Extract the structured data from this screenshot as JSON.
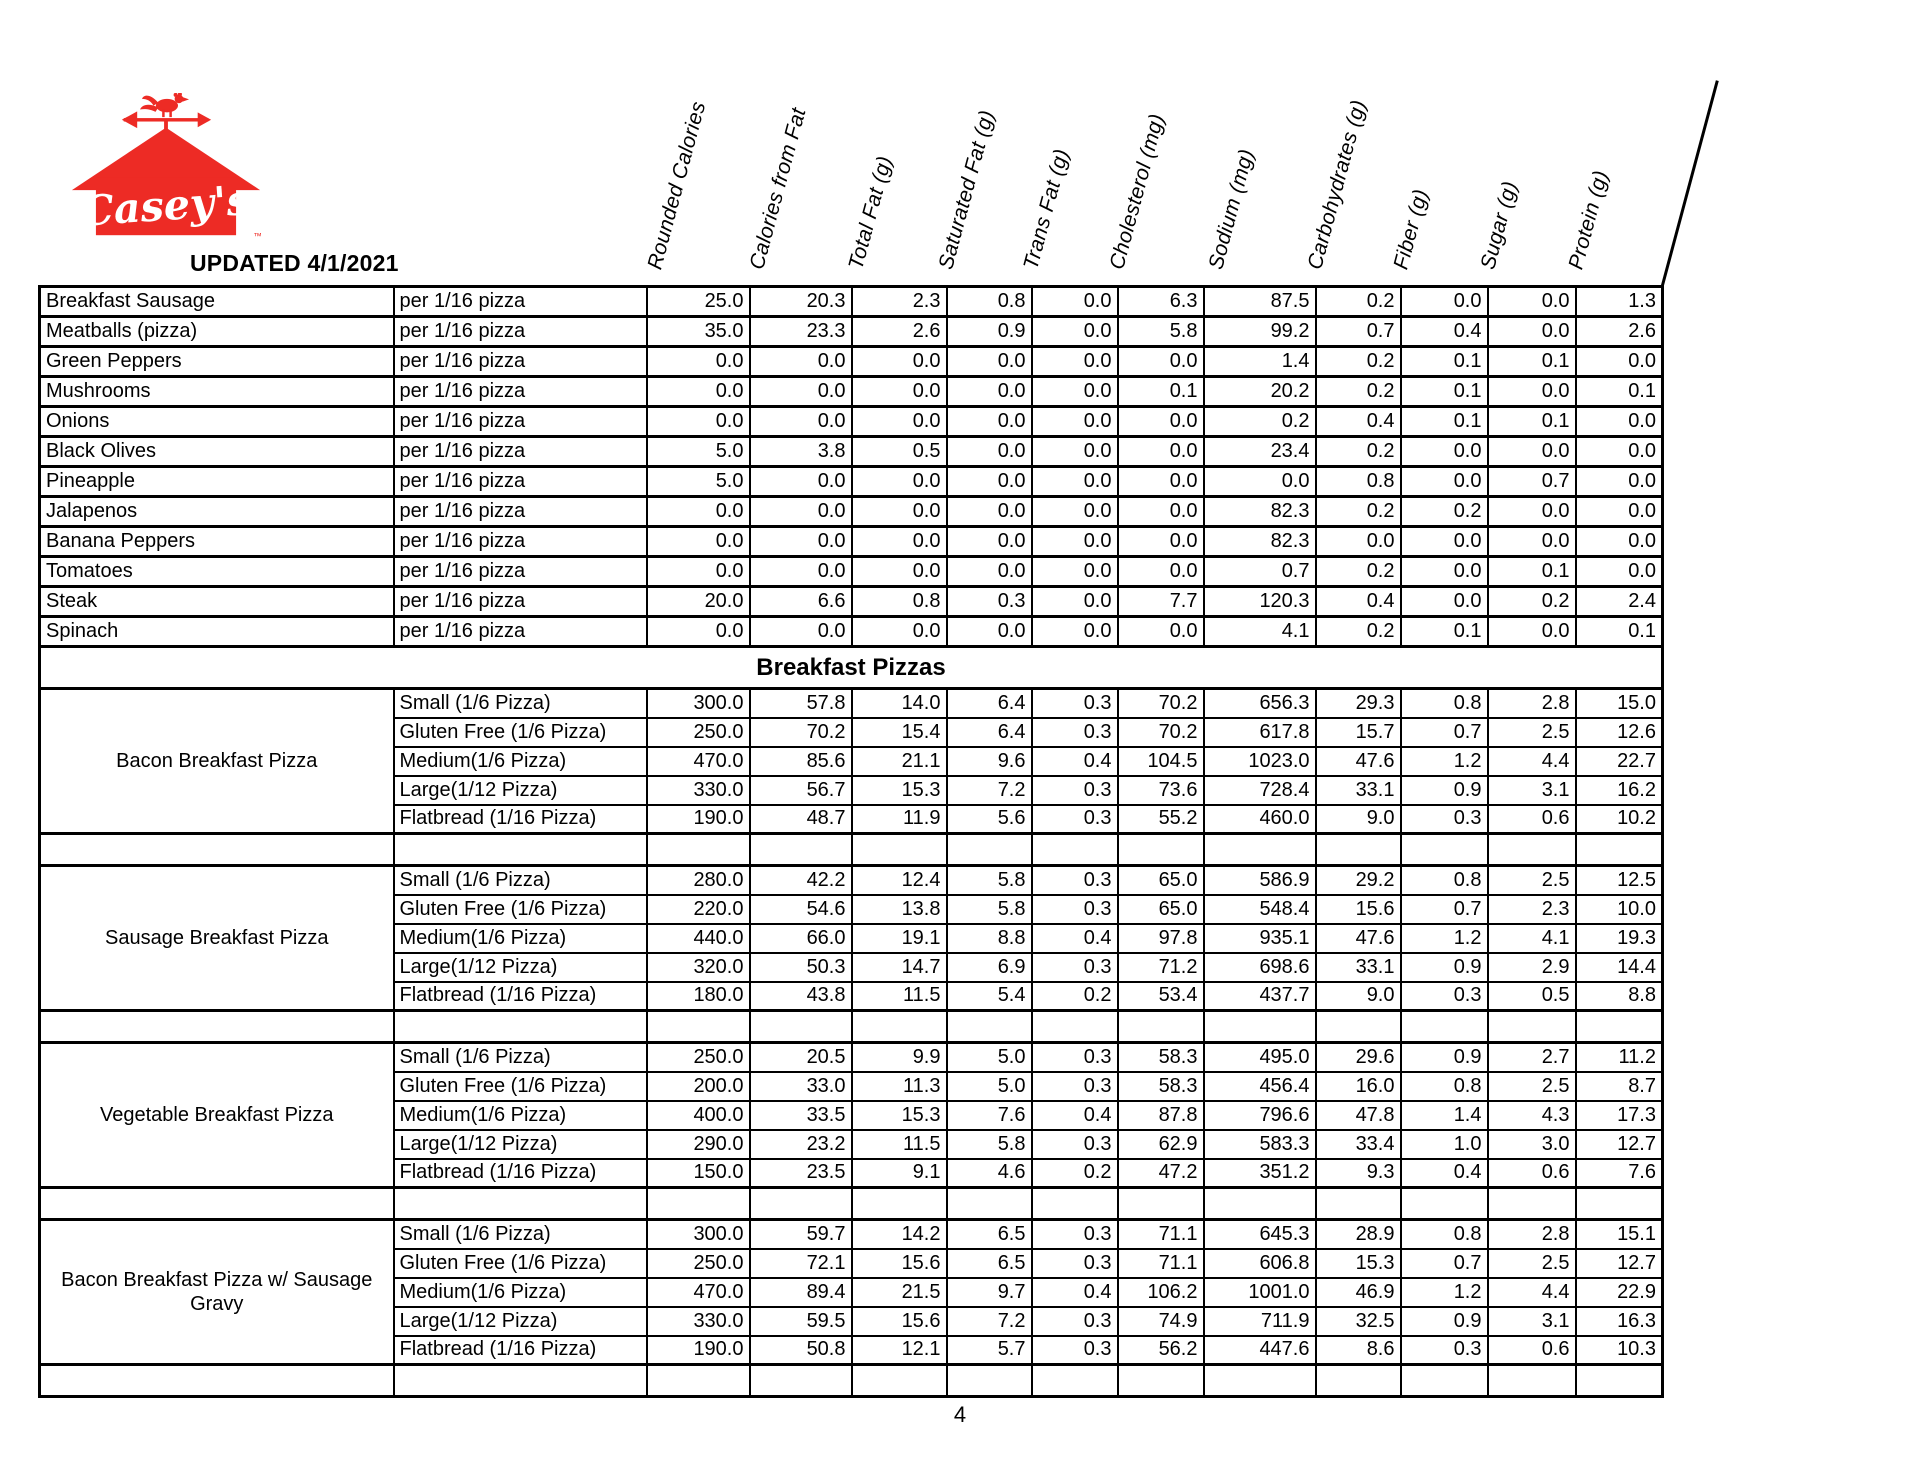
{
  "brand": {
    "logo_text": "Casey's",
    "logo_trademark": "™",
    "logo_color": "#ED2B25",
    "updated_label": "UPDATED 4/1/2021"
  },
  "page_number": "4",
  "section_header": "Breakfast Pizzas",
  "columns": [
    "Rounded Calories",
    "Calories from Fat",
    "Total Fat (g)",
    "Saturated Fat (g)",
    "Trans Fat (g)",
    "Cholesterol (mg)",
    "Sodium (mg)",
    "Carbohydrates (g)",
    "Fiber (g)",
    "Sugar (g)",
    "Protein (g)"
  ],
  "toppings": [
    {
      "name": "Breakfast Sausage",
      "portion": "per 1/16 pizza",
      "values": [
        "25.0",
        "20.3",
        "2.3",
        "0.8",
        "0.0",
        "6.3",
        "87.5",
        "0.2",
        "0.0",
        "0.0",
        "1.3"
      ]
    },
    {
      "name": "Meatballs (pizza)",
      "portion": "per 1/16 pizza",
      "values": [
        "35.0",
        "23.3",
        "2.6",
        "0.9",
        "0.0",
        "5.8",
        "99.2",
        "0.7",
        "0.4",
        "0.0",
        "2.6"
      ]
    },
    {
      "name": "Green Peppers",
      "portion": "per 1/16 pizza",
      "values": [
        "0.0",
        "0.0",
        "0.0",
        "0.0",
        "0.0",
        "0.0",
        "1.4",
        "0.2",
        "0.1",
        "0.1",
        "0.0"
      ]
    },
    {
      "name": "Mushrooms",
      "portion": "per 1/16 pizza",
      "values": [
        "0.0",
        "0.0",
        "0.0",
        "0.0",
        "0.0",
        "0.1",
        "20.2",
        "0.2",
        "0.1",
        "0.0",
        "0.1"
      ]
    },
    {
      "name": "Onions",
      "portion": "per 1/16 pizza",
      "values": [
        "0.0",
        "0.0",
        "0.0",
        "0.0",
        "0.0",
        "0.0",
        "0.2",
        "0.4",
        "0.1",
        "0.1",
        "0.0"
      ]
    },
    {
      "name": "Black Olives",
      "portion": "per 1/16 pizza",
      "values": [
        "5.0",
        "3.8",
        "0.5",
        "0.0",
        "0.0",
        "0.0",
        "23.4",
        "0.2",
        "0.0",
        "0.0",
        "0.0"
      ]
    },
    {
      "name": "Pineapple",
      "portion": "per 1/16 pizza",
      "values": [
        "5.0",
        "0.0",
        "0.0",
        "0.0",
        "0.0",
        "0.0",
        "0.0",
        "0.8",
        "0.0",
        "0.7",
        "0.0"
      ]
    },
    {
      "name": "Jalapenos",
      "portion": "per 1/16 pizza",
      "values": [
        "0.0",
        "0.0",
        "0.0",
        "0.0",
        "0.0",
        "0.0",
        "82.3",
        "0.2",
        "0.2",
        "0.0",
        "0.0"
      ]
    },
    {
      "name": "Banana Peppers",
      "portion": "per 1/16 pizza",
      "values": [
        "0.0",
        "0.0",
        "0.0",
        "0.0",
        "0.0",
        "0.0",
        "82.3",
        "0.0",
        "0.0",
        "0.0",
        "0.0"
      ]
    },
    {
      "name": "Tomatoes",
      "portion": "per 1/16 pizza",
      "values": [
        "0.0",
        "0.0",
        "0.0",
        "0.0",
        "0.0",
        "0.0",
        "0.7",
        "0.2",
        "0.0",
        "0.1",
        "0.0"
      ]
    },
    {
      "name": "Steak",
      "portion": "per 1/16 pizza",
      "values": [
        "20.0",
        "6.6",
        "0.8",
        "0.3",
        "0.0",
        "7.7",
        "120.3",
        "0.4",
        "0.0",
        "0.2",
        "2.4"
      ]
    },
    {
      "name": "Spinach",
      "portion": "per 1/16 pizza",
      "values": [
        "0.0",
        "0.0",
        "0.0",
        "0.0",
        "0.0",
        "0.0",
        "4.1",
        "0.2",
        "0.1",
        "0.0",
        "0.1"
      ]
    }
  ],
  "groups": [
    {
      "name": "Bacon Breakfast Pizza",
      "rows": [
        {
          "size": "Small (1/6 Pizza)",
          "values": [
            "300.0",
            "57.8",
            "14.0",
            "6.4",
            "0.3",
            "70.2",
            "656.3",
            "29.3",
            "0.8",
            "2.8",
            "15.0"
          ]
        },
        {
          "size": "Gluten Free (1/6 Pizza)",
          "values": [
            "250.0",
            "70.2",
            "15.4",
            "6.4",
            "0.3",
            "70.2",
            "617.8",
            "15.7",
            "0.7",
            "2.5",
            "12.6"
          ]
        },
        {
          "size": "Medium(1/6 Pizza)",
          "values": [
            "470.0",
            "85.6",
            "21.1",
            "9.6",
            "0.4",
            "104.5",
            "1023.0",
            "47.6",
            "1.2",
            "4.4",
            "22.7"
          ]
        },
        {
          "size": "Large(1/12 Pizza)",
          "values": [
            "330.0",
            "56.7",
            "15.3",
            "7.2",
            "0.3",
            "73.6",
            "728.4",
            "33.1",
            "0.9",
            "3.1",
            "16.2"
          ]
        },
        {
          "size": "Flatbread (1/16 Pizza)",
          "values": [
            "190.0",
            "48.7",
            "11.9",
            "5.6",
            "0.3",
            "55.2",
            "460.0",
            "9.0",
            "0.3",
            "0.6",
            "10.2"
          ]
        }
      ]
    },
    {
      "name": "Sausage Breakfast Pizza",
      "rows": [
        {
          "size": "Small (1/6 Pizza)",
          "values": [
            "280.0",
            "42.2",
            "12.4",
            "5.8",
            "0.3",
            "65.0",
            "586.9",
            "29.2",
            "0.8",
            "2.5",
            "12.5"
          ]
        },
        {
          "size": "Gluten Free (1/6 Pizza)",
          "values": [
            "220.0",
            "54.6",
            "13.8",
            "5.8",
            "0.3",
            "65.0",
            "548.4",
            "15.6",
            "0.7",
            "2.3",
            "10.0"
          ]
        },
        {
          "size": "Medium(1/6 Pizza)",
          "values": [
            "440.0",
            "66.0",
            "19.1",
            "8.8",
            "0.4",
            "97.8",
            "935.1",
            "47.6",
            "1.2",
            "4.1",
            "19.3"
          ]
        },
        {
          "size": "Large(1/12 Pizza)",
          "values": [
            "320.0",
            "50.3",
            "14.7",
            "6.9",
            "0.3",
            "71.2",
            "698.6",
            "33.1",
            "0.9",
            "2.9",
            "14.4"
          ]
        },
        {
          "size": "Flatbread (1/16 Pizza)",
          "values": [
            "180.0",
            "43.8",
            "11.5",
            "5.4",
            "0.2",
            "53.4",
            "437.7",
            "9.0",
            "0.3",
            "0.5",
            "8.8"
          ]
        }
      ]
    },
    {
      "name": "Vegetable Breakfast Pizza",
      "rows": [
        {
          "size": "Small (1/6 Pizza)",
          "values": [
            "250.0",
            "20.5",
            "9.9",
            "5.0",
            "0.3",
            "58.3",
            "495.0",
            "29.6",
            "0.9",
            "2.7",
            "11.2"
          ]
        },
        {
          "size": "Gluten Free (1/6 Pizza)",
          "values": [
            "200.0",
            "33.0",
            "11.3",
            "5.0",
            "0.3",
            "58.3",
            "456.4",
            "16.0",
            "0.8",
            "2.5",
            "8.7"
          ]
        },
        {
          "size": "Medium(1/6 Pizza)",
          "values": [
            "400.0",
            "33.5",
            "15.3",
            "7.6",
            "0.4",
            "87.8",
            "796.6",
            "47.8",
            "1.4",
            "4.3",
            "17.3"
          ]
        },
        {
          "size": "Large(1/12 Pizza)",
          "values": [
            "290.0",
            "23.2",
            "11.5",
            "5.8",
            "0.3",
            "62.9",
            "583.3",
            "33.4",
            "1.0",
            "3.0",
            "12.7"
          ]
        },
        {
          "size": "Flatbread (1/16 Pizza)",
          "values": [
            "150.0",
            "23.5",
            "9.1",
            "4.6",
            "0.2",
            "47.2",
            "351.2",
            "9.3",
            "0.4",
            "0.6",
            "7.6"
          ]
        }
      ]
    },
    {
      "name": "Bacon Breakfast Pizza w/ Sausage Gravy",
      "rows": [
        {
          "size": "Small (1/6 Pizza)",
          "values": [
            "300.0",
            "59.7",
            "14.2",
            "6.5",
            "0.3",
            "71.1",
            "645.3",
            "28.9",
            "0.8",
            "2.8",
            "15.1"
          ]
        },
        {
          "size": "Gluten Free (1/6 Pizza)",
          "values": [
            "250.0",
            "72.1",
            "15.6",
            "6.5",
            "0.3",
            "71.1",
            "606.8",
            "15.3",
            "0.7",
            "2.5",
            "12.7"
          ]
        },
        {
          "size": "Medium(1/6 Pizza)",
          "values": [
            "470.0",
            "89.4",
            "21.5",
            "9.7",
            "0.4",
            "106.2",
            "1001.0",
            "46.9",
            "1.2",
            "4.4",
            "22.9"
          ]
        },
        {
          "size": "Large(1/12 Pizza)",
          "values": [
            "330.0",
            "59.5",
            "15.6",
            "7.2",
            "0.3",
            "74.9",
            "711.9",
            "32.5",
            "0.9",
            "3.1",
            "16.3"
          ]
        },
        {
          "size": "Flatbread (1/16 Pizza)",
          "values": [
            "190.0",
            "50.8",
            "12.1",
            "5.7",
            "0.3",
            "56.2",
            "447.6",
            "8.6",
            "0.3",
            "0.6",
            "10.3"
          ]
        }
      ]
    }
  ]
}
